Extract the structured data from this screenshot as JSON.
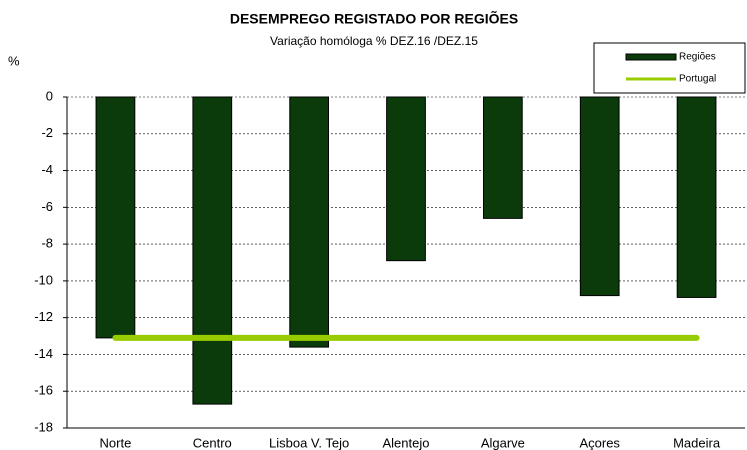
{
  "chart_data": {
    "type": "bar",
    "title": "DESEMPREGO REGISTADO POR REGIÕES",
    "subtitle": "Variação homóloga %  DEZ.16 /DEZ.15",
    "y_label": "%",
    "categories": [
      "Norte",
      "Centro",
      "Lisboa V. Tejo",
      "Alentejo",
      "Algarve",
      "Açores",
      "Madeira"
    ],
    "series": [
      {
        "name": "Regiões",
        "type": "bar",
        "color": "#0b3a0b",
        "values": [
          -13.1,
          -16.7,
          -13.6,
          -8.9,
          -6.6,
          -10.8,
          -10.9
        ]
      },
      {
        "name": "Portugal",
        "type": "line",
        "color": "#99cc00",
        "values": [
          -13.1,
          -13.1,
          -13.1,
          -13.1,
          -13.1,
          -13.1,
          -13.1
        ]
      }
    ],
    "ylim": [
      -18,
      0
    ],
    "yticks": [
      0,
      -2,
      -4,
      -6,
      -8,
      -10,
      -12,
      -14,
      -16,
      -18
    ],
    "grid": true,
    "legend": "top-right"
  }
}
